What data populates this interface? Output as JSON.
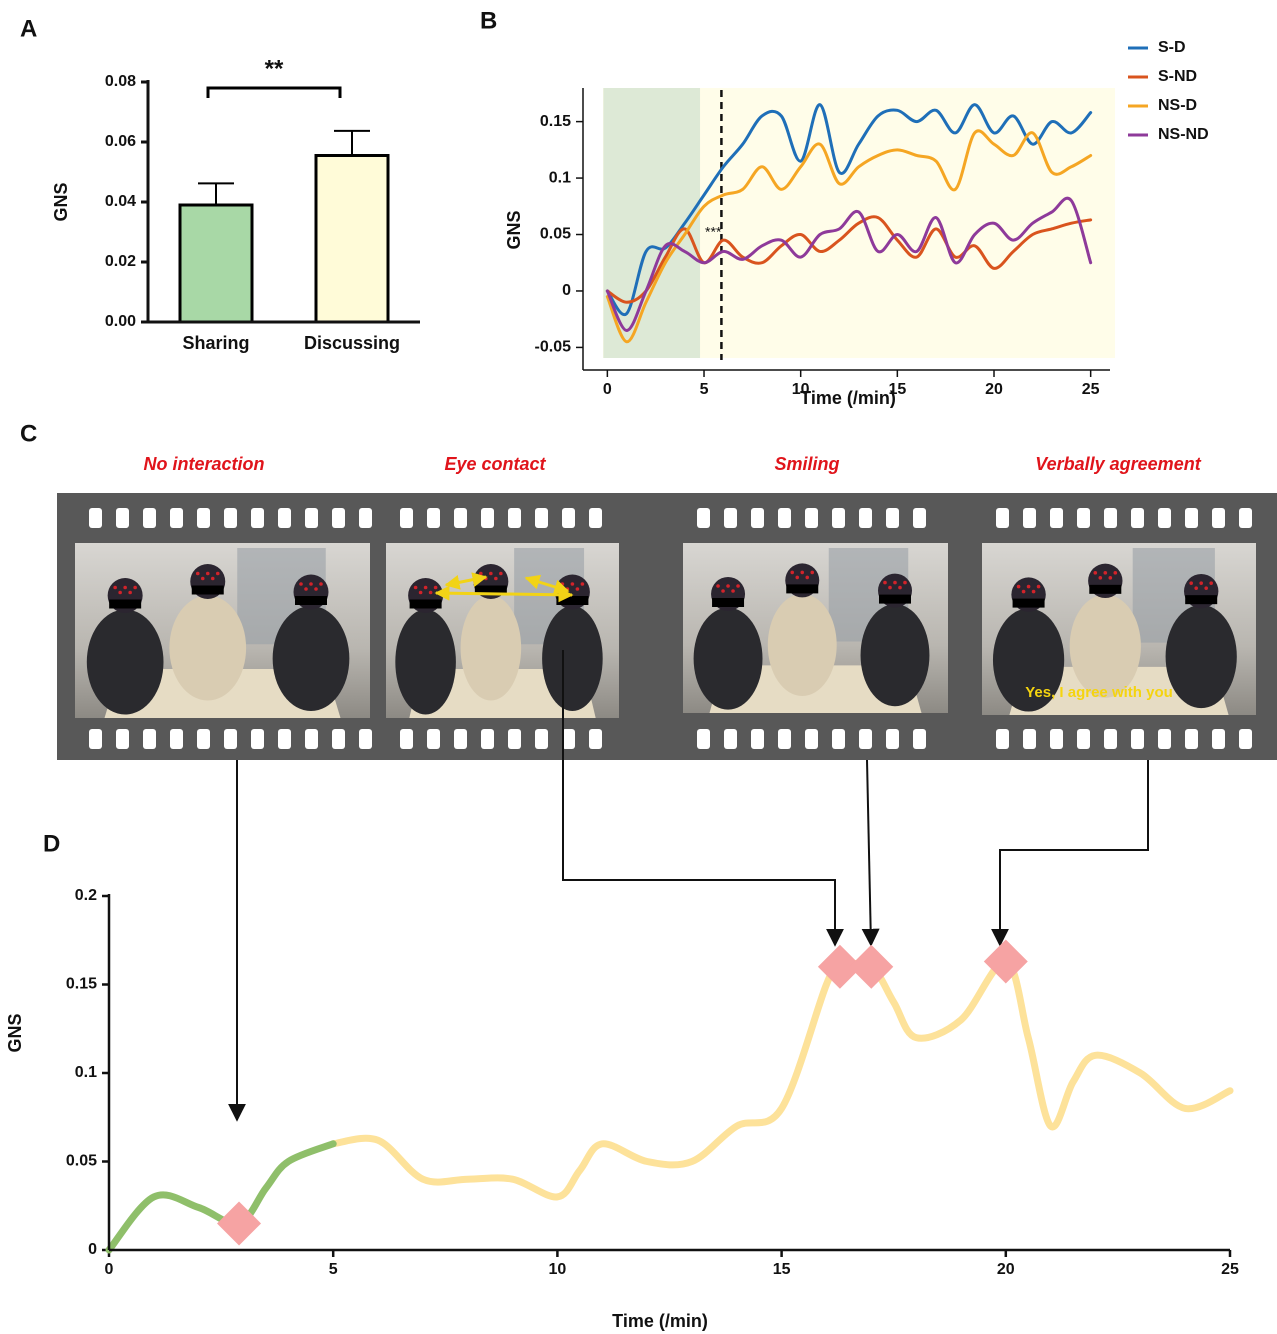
{
  "chart_data": [
    {
      "panel": "A",
      "type": "bar",
      "categories": [
        "Sharing",
        "Discussing"
      ],
      "values": [
        0.039,
        0.0555
      ],
      "errors": [
        0.0072,
        0.0082
      ],
      "colors": [
        "#a8d8a6",
        "#fffbd8"
      ],
      "significance": "**",
      "ylabel": "GNS",
      "ylim": [
        0,
        0.08
      ],
      "yticks": [
        {
          "value": 0,
          "label": "0.00"
        },
        {
          "value": 0.02,
          "label": "0.02"
        },
        {
          "value": 0.04,
          "label": "0.04"
        },
        {
          "value": 0.06,
          "label": "0.06"
        },
        {
          "value": 0.08,
          "label": "0.08"
        }
      ]
    },
    {
      "panel": "B",
      "type": "line",
      "x": [
        0,
        1,
        2,
        3,
        4,
        5,
        6,
        7,
        8,
        9,
        10,
        11,
        12,
        13,
        14,
        15,
        16,
        17,
        18,
        19,
        20,
        21,
        22,
        23,
        24,
        25
      ],
      "series": [
        {
          "name": "S-D",
          "color": "#1f6fb8",
          "values": [
            0,
            -0.02,
            0.035,
            0.038,
            0.06,
            0.085,
            0.11,
            0.13,
            0.155,
            0.155,
            0.115,
            0.165,
            0.105,
            0.13,
            0.155,
            0.16,
            0.15,
            0.16,
            0.14,
            0.165,
            0.14,
            0.155,
            0.13,
            0.15,
            0.14,
            0.158
          ]
        },
        {
          "name": "S-ND",
          "color": "#d9541e",
          "values": [
            0,
            -0.01,
            0,
            0.03,
            0.055,
            0.025,
            0.045,
            0.03,
            0.025,
            0.04,
            0.05,
            0.035,
            0.045,
            0.06,
            0.065,
            0.045,
            0.03,
            0.055,
            0.03,
            0.04,
            0.02,
            0.035,
            0.05,
            0.055,
            0.06,
            0.063
          ]
        },
        {
          "name": "NS-D",
          "color": "#f5a623",
          "values": [
            -0.005,
            -0.045,
            -0.01,
            0.025,
            0.05,
            0.075,
            0.085,
            0.09,
            0.11,
            0.09,
            0.11,
            0.13,
            0.095,
            0.11,
            0.12,
            0.125,
            0.12,
            0.115,
            0.09,
            0.14,
            0.13,
            0.12,
            0.14,
            0.105,
            0.11,
            0.12
          ]
        },
        {
          "name": "NS-ND",
          "color": "#8e3a9a",
          "values": [
            0,
            -0.035,
            0,
            0.04,
            0.035,
            0.025,
            0.035,
            0.028,
            0.04,
            0.045,
            0.03,
            0.05,
            0.055,
            0.07,
            0.035,
            0.05,
            0.035,
            0.065,
            0.025,
            0.05,
            0.06,
            0.045,
            0.06,
            0.07,
            0.08,
            0.025
          ]
        }
      ],
      "xlabel": "Time (/min)",
      "ylabel": "GNS",
      "xlim": [
        -1.26,
        26
      ],
      "ylim": [
        -0.07,
        0.178
      ],
      "xticks": [
        0,
        5,
        10,
        15,
        20,
        25
      ],
      "yticks": [
        -0.05,
        0,
        0.05,
        0.1,
        0.15
      ],
      "shaded_x": [
        0,
        5
      ],
      "shade_color": "#dde9d6",
      "background": "#fffde9",
      "vline_x": 5.9,
      "annotation": "***",
      "legend": "right"
    },
    {
      "panel": "D",
      "type": "line",
      "x": [
        0,
        1,
        2,
        2.9,
        3.5,
        4,
        5,
        6,
        7,
        8,
        9,
        10,
        10.5,
        11,
        12,
        13,
        14,
        15,
        16,
        16.3,
        17,
        17.5,
        18,
        19,
        20,
        20.5,
        21,
        21.5,
        22,
        23,
        24,
        25
      ],
      "values": [
        0,
        0.03,
        0.024,
        0.015,
        0.035,
        0.05,
        0.06,
        0.062,
        0.04,
        0.04,
        0.04,
        0.03,
        0.045,
        0.06,
        0.05,
        0.05,
        0.07,
        0.08,
        0.15,
        0.16,
        0.16,
        0.14,
        0.12,
        0.13,
        0.163,
        0.12,
        0.07,
        0.095,
        0.11,
        0.1,
        0.08,
        0.09
      ],
      "highlight_until": 5,
      "colors": [
        "#8fbf6a",
        "#fde29a"
      ],
      "markers": {
        "x": [
          2.9,
          16.3,
          17,
          20
        ],
        "values": [
          0.015,
          0.16,
          0.16,
          0.163
        ],
        "color": "#f6a3a3"
      },
      "xlabel": "Time (/min)",
      "ylabel": "GNS",
      "xlim": [
        0,
        25
      ],
      "ylim": [
        0,
        0.2
      ],
      "xticks": [
        0,
        5,
        10,
        15,
        20,
        25
      ],
      "yticks": [
        0,
        0.05,
        0.1,
        0.15,
        0.2
      ]
    }
  ],
  "filmstrip": {
    "panel": "C",
    "frames": [
      {
        "caption": "No interaction"
      },
      {
        "caption": "Eye contact"
      },
      {
        "caption": "Smiling"
      },
      {
        "caption": "Verbally agreement",
        "subtitle": "Yes, I agree with you"
      }
    ]
  }
}
